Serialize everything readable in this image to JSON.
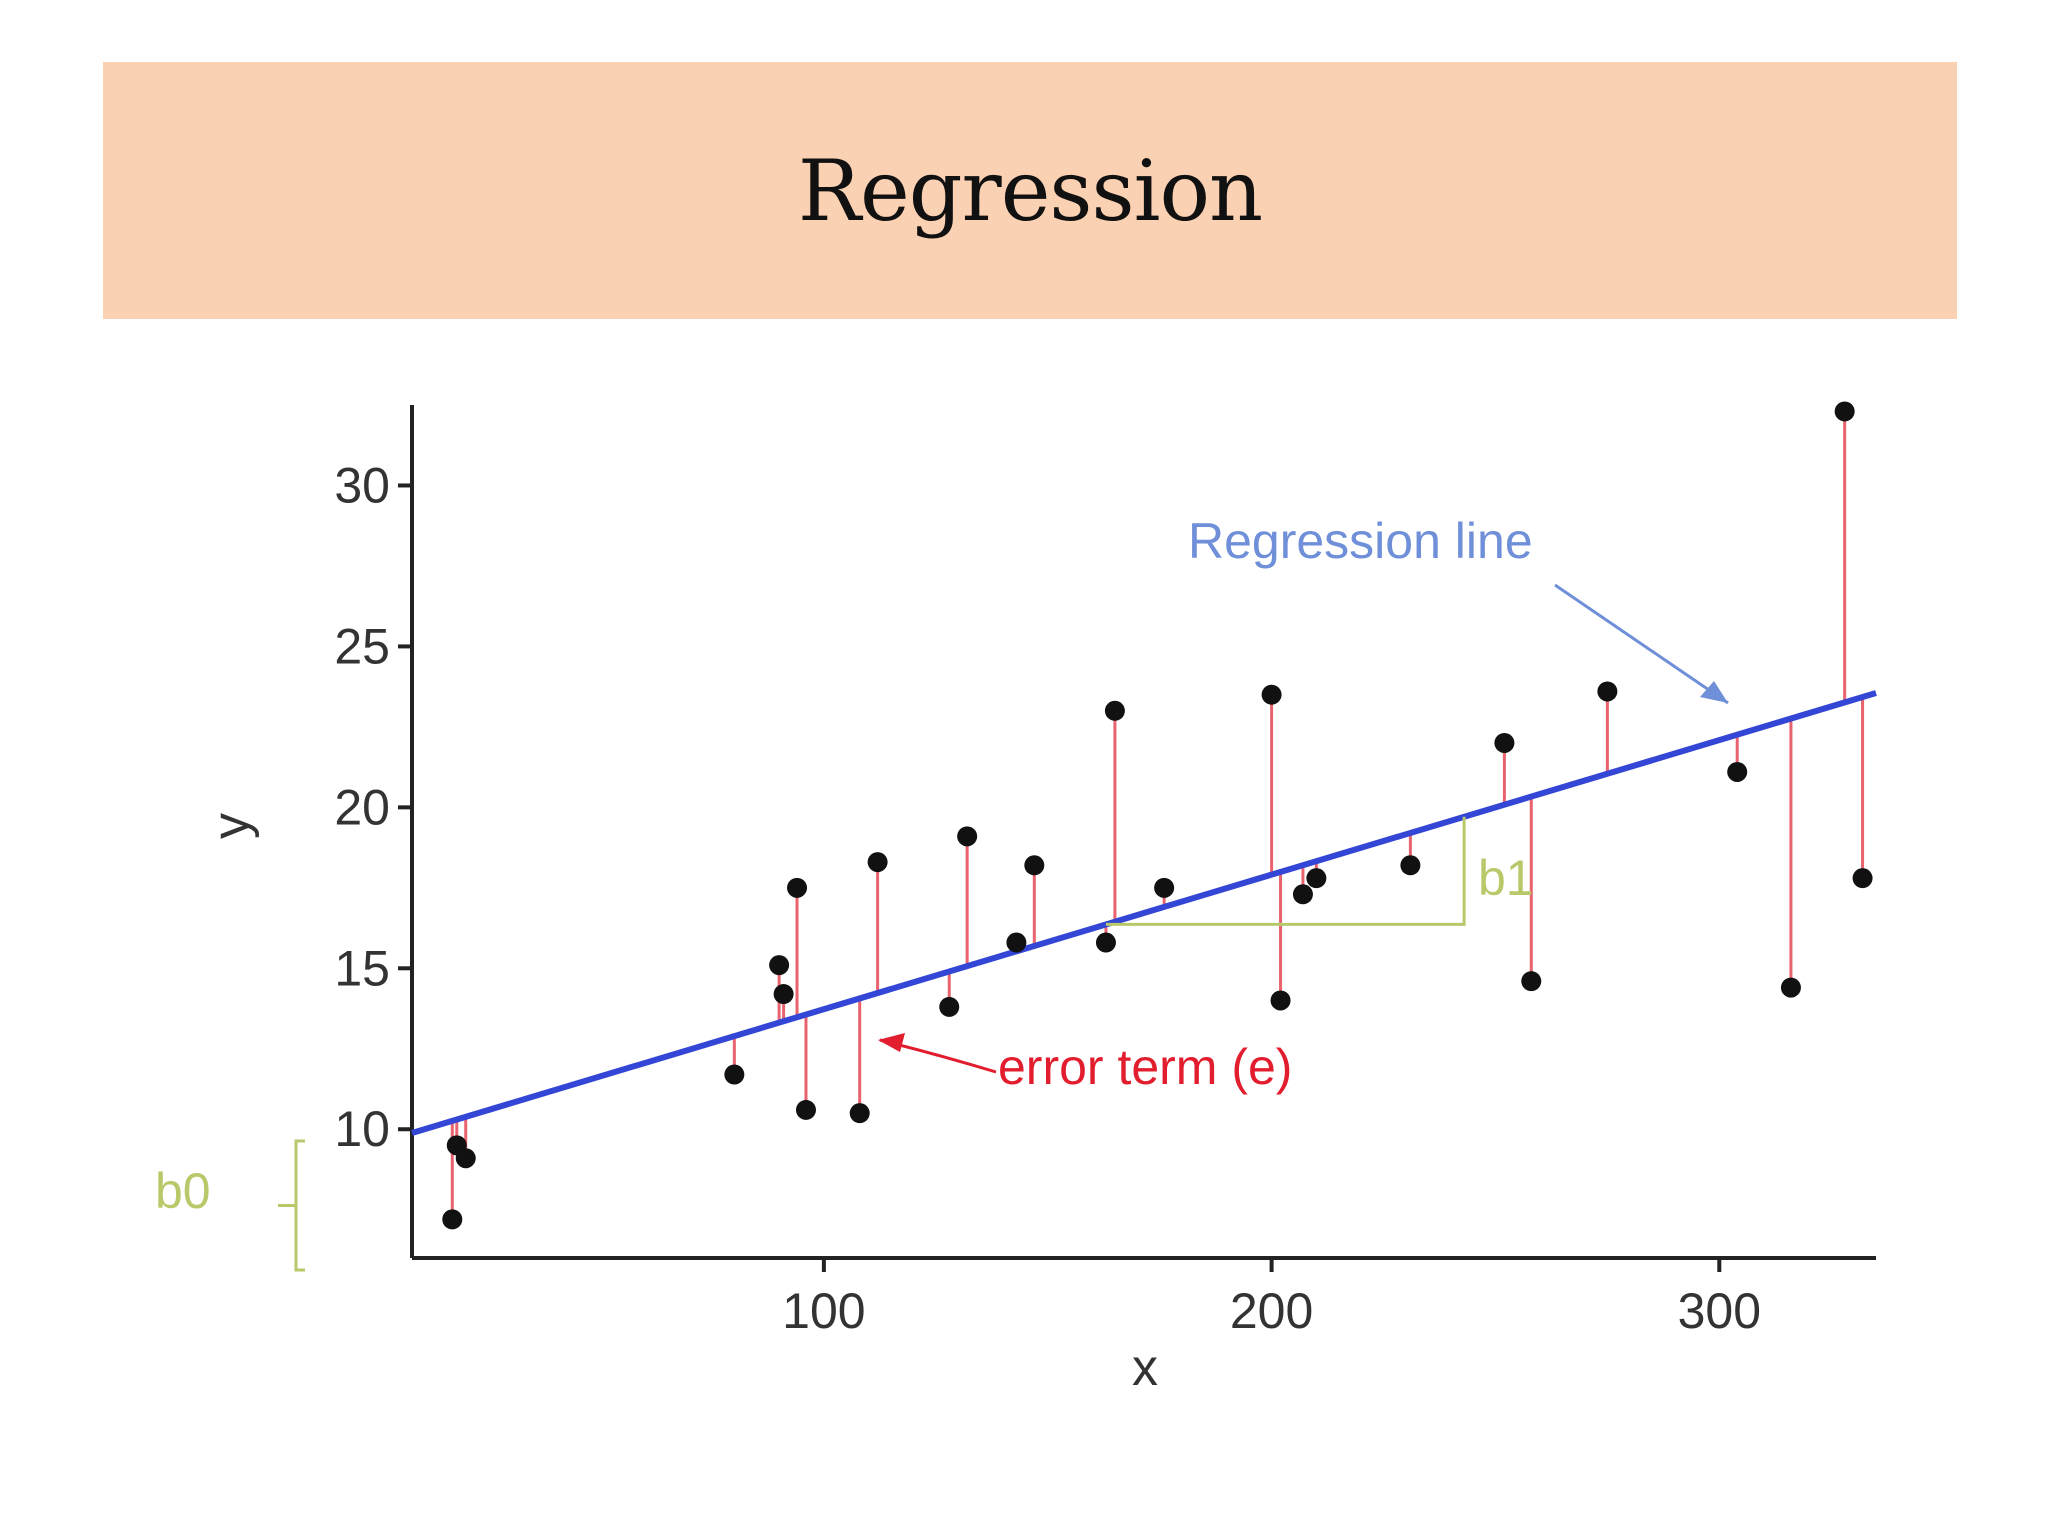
{
  "slide": {
    "title": "Regression"
  },
  "chart_data": {
    "type": "scatter",
    "title": "",
    "xlabel": "x",
    "ylabel": "y",
    "xlim": [
      8,
      335
    ],
    "ylim": [
      6,
      32.5
    ],
    "x_ticks": [
      100,
      200,
      300
    ],
    "x_tick_labels": [
      "100",
      "200",
      "300"
    ],
    "y_ticks": [
      10,
      15,
      20,
      25,
      30
    ],
    "y_tick_labels": [
      "10",
      "15",
      "20",
      "25",
      "30"
    ],
    "grid": false,
    "legend": "none",
    "points": [
      {
        "x": 17,
        "y": 7.2
      },
      {
        "x": 18,
        "y": 9.5
      },
      {
        "x": 20,
        "y": 9.1
      },
      {
        "x": 80,
        "y": 11.7
      },
      {
        "x": 90,
        "y": 15.1
      },
      {
        "x": 91,
        "y": 14.2
      },
      {
        "x": 94,
        "y": 17.5
      },
      {
        "x": 96,
        "y": 10.6
      },
      {
        "x": 108,
        "y": 10.5
      },
      {
        "x": 112,
        "y": 18.3
      },
      {
        "x": 128,
        "y": 13.8
      },
      {
        "x": 132,
        "y": 19.1
      },
      {
        "x": 143,
        "y": 15.8
      },
      {
        "x": 147,
        "y": 18.2
      },
      {
        "x": 163,
        "y": 15.8
      },
      {
        "x": 165,
        "y": 23.0
      },
      {
        "x": 176,
        "y": 17.5
      },
      {
        "x": 200,
        "y": 23.5
      },
      {
        "x": 202,
        "y": 14.0
      },
      {
        "x": 207,
        "y": 17.3
      },
      {
        "x": 210,
        "y": 17.8
      },
      {
        "x": 231,
        "y": 18.2
      },
      {
        "x": 252,
        "y": 22.0
      },
      {
        "x": 258,
        "y": 14.6
      },
      {
        "x": 275,
        "y": 23.6
      },
      {
        "x": 304,
        "y": 21.1
      },
      {
        "x": 316,
        "y": 14.4
      },
      {
        "x": 328,
        "y": 32.3
      },
      {
        "x": 332,
        "y": 17.8
      }
    ],
    "regression_line": {
      "intercept": 9.55,
      "slope": 0.0418,
      "color": "#3346d6"
    },
    "colors": {
      "points": "#111111",
      "residuals": "#e8636e",
      "error_label": "#e11d2e",
      "regression_label": "#6f8fd8",
      "parameter_marks": "#b8c96a"
    },
    "annotations": {
      "regression_line_label": "Regression line",
      "error_term_label": "error term (e)",
      "intercept_label": "b0",
      "slope_label": "b1"
    }
  }
}
